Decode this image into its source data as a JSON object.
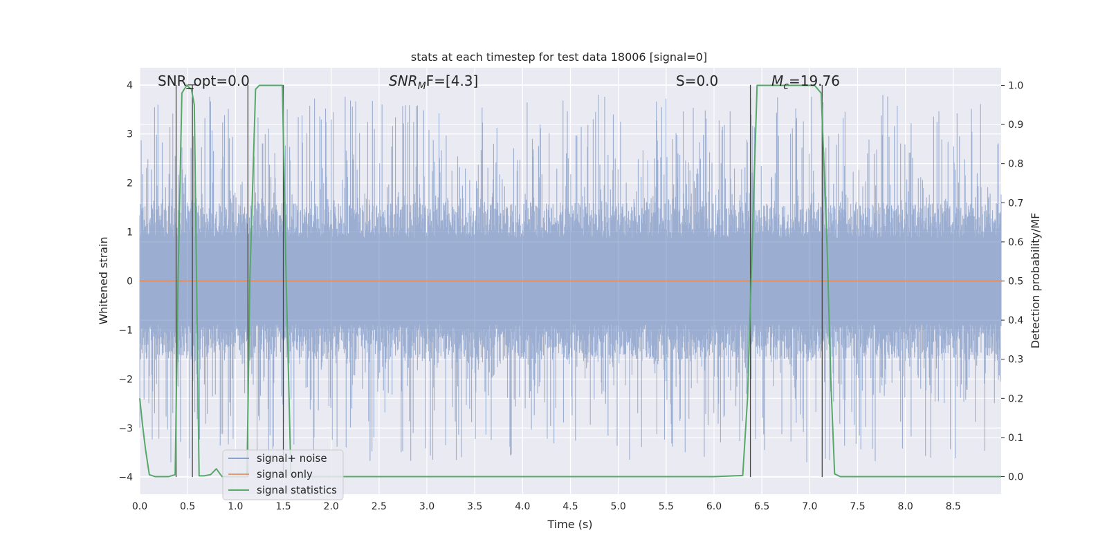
{
  "chart_data": {
    "type": "line",
    "title": "stats at each timestep for test data 18006 [signal=0]",
    "xlabel": "Time (s)",
    "ylabel": "Whitened strain",
    "y2label": "Detection probability/MF",
    "xlim": [
      0.0,
      9.0
    ],
    "ylim": [
      -4.35,
      4.35
    ],
    "y2lim": [
      -0.045,
      1.045
    ],
    "x_ticks": [
      0.0,
      0.5,
      1.0,
      1.5,
      2.0,
      2.5,
      3.0,
      3.5,
      4.0,
      4.5,
      5.0,
      5.5,
      6.0,
      6.5,
      7.0,
      7.5,
      8.0,
      8.5
    ],
    "x_tick_labels": [
      "0.0",
      "0.5",
      "1.0",
      "1.5",
      "2.0",
      "2.5",
      "3.0",
      "3.5",
      "4.0",
      "4.5",
      "5.0",
      "5.5",
      "6.0",
      "6.5",
      "7.0",
      "7.5",
      "8.0",
      "8.5"
    ],
    "y_ticks": [
      -4,
      -3,
      -2,
      -1,
      0,
      1,
      2,
      3,
      4
    ],
    "y_tick_labels": [
      "−4",
      "−3",
      "−2",
      "−1",
      "0",
      "1",
      "2",
      "3",
      "4"
    ],
    "y2_ticks": [
      0.0,
      0.1,
      0.2,
      0.3,
      0.4,
      0.5,
      0.6,
      0.7,
      0.8,
      0.9,
      1.0
    ],
    "y2_tick_labels": [
      "0.0",
      "0.1",
      "0.2",
      "0.3",
      "0.4",
      "0.5",
      "0.6",
      "0.7",
      "0.8",
      "0.9",
      "1.0"
    ],
    "grid": true,
    "legend_position": "lower-left",
    "annotations": {
      "snr_opt": "SNR_opt=0.0",
      "snr_mf_base": "SNR",
      "snr_mf_sub": "M",
      "snr_mf_tail": "F=[4.3]",
      "s_value": "S=0.0",
      "mc_base": "M",
      "mc_sub": "c",
      "mc_tail": "=19.76"
    },
    "series": [
      {
        "name": "signal+ noise",
        "color": "#4c72b0",
        "kind": "noise",
        "typical_range": [
          -1.6,
          1.6
        ],
        "peak_range": [
          -3.7,
          3.8
        ]
      },
      {
        "name": "signal only",
        "color": "#dd8452",
        "x": [
          0.0,
          9.0
        ],
        "y": [
          0.0,
          0.0
        ]
      },
      {
        "name": "signal statistics",
        "color": "#55a868",
        "axis": "right",
        "x": [
          0.0,
          0.03,
          0.06,
          0.1,
          0.16,
          0.25,
          0.3,
          0.37,
          0.4,
          0.44,
          0.49,
          0.54,
          0.57,
          0.62,
          0.67,
          0.74,
          0.8,
          0.86,
          1.1,
          1.12,
          1.15,
          1.21,
          1.25,
          1.4,
          1.49,
          1.53,
          1.58,
          2.2,
          3.0,
          4.0,
          5.0,
          6.0,
          6.3,
          6.35,
          6.4,
          6.45,
          6.5,
          6.9,
          7.05,
          7.12,
          7.18,
          7.22,
          7.26,
          7.32,
          8.0,
          9.0
        ],
        "y": [
          0.2,
          0.13,
          0.07,
          0.005,
          0.0,
          0.0,
          0.0,
          0.005,
          0.5,
          0.98,
          1.0,
          0.99,
          0.95,
          0.002,
          0.002,
          0.005,
          0.02,
          0.0,
          0.0,
          0.0,
          0.5,
          0.99,
          1.0,
          1.0,
          1.0,
          0.5,
          0.0,
          0.0,
          0.0,
          0.0,
          0.0,
          0.0,
          0.003,
          0.2,
          0.6,
          1.0,
          1.0,
          1.0,
          1.0,
          0.98,
          0.6,
          0.25,
          0.007,
          0.0,
          0.0,
          0.0
        ]
      }
    ],
    "vertical_lines_x": [
      0.38,
      0.55,
      1.13,
      1.5,
      6.38,
      7.13
    ],
    "hatch_marks": [
      {
        "x": [
          0.5,
          0.6
        ],
        "y": 4.0
      }
    ]
  }
}
